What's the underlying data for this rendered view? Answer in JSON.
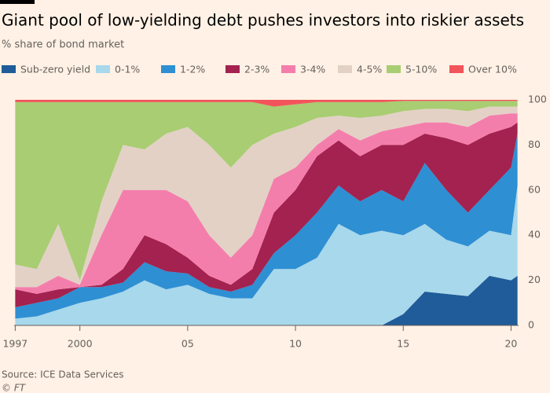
{
  "chart_data": {
    "type": "stacked-area",
    "title": "Giant pool of low-yielding debt pushes investors into riskier assets",
    "subtitle": "% share of bond market",
    "source": "Source: ICE Data Services",
    "credit": "© FT",
    "x": [
      1997,
      1998,
      1999,
      2000,
      2001,
      2002,
      2003,
      2004,
      2005,
      2006,
      2007,
      2008,
      2009,
      2010,
      2011,
      2012,
      2013,
      2014,
      2015,
      2016,
      2017,
      2018,
      2019,
      2020,
      2020.3
    ],
    "xlim": [
      1996.95,
      2020.35
    ],
    "xticks": [
      {
        "value": 1997,
        "label": "1997"
      },
      {
        "value": 2000,
        "label": "2000"
      },
      {
        "value": 2005,
        "label": "05"
      },
      {
        "value": 2010,
        "label": "10"
      },
      {
        "value": 2015,
        "label": "15"
      },
      {
        "value": 2020,
        "label": "20"
      }
    ],
    "ylim": [
      0,
      100
    ],
    "yticks": [
      0,
      20,
      40,
      60,
      80,
      100
    ],
    "grid": false,
    "series": [
      {
        "name": "Sub-zero yield",
        "color": "#1f5c99",
        "values": [
          0,
          0,
          0,
          0,
          0,
          0,
          0,
          0,
          0,
          0,
          0,
          0,
          0,
          0,
          0,
          0,
          0,
          0,
          5,
          15,
          14,
          13,
          22,
          20,
          22
        ]
      },
      {
        "name": "0-1%",
        "color": "#a7d8ec",
        "values": [
          3,
          4,
          7,
          10,
          12,
          15,
          20,
          16,
          18,
          14,
          12,
          12,
          25,
          25,
          30,
          45,
          40,
          42,
          35,
          30,
          24,
          22,
          20,
          20,
          40
        ]
      },
      {
        "name": "1-2%",
        "color": "#2e8fd3",
        "values": [
          5,
          6,
          5,
          7,
          5,
          4,
          8,
          8,
          5,
          3,
          3,
          6,
          7,
          15,
          20,
          17,
          15,
          18,
          15,
          27,
          22,
          15,
          18,
          30,
          23
        ]
      },
      {
        "name": "2-3%",
        "color": "#a3224f",
        "values": [
          8,
          4,
          4,
          0,
          1,
          6,
          12,
          12,
          7,
          5,
          3,
          7,
          18,
          20,
          25,
          20,
          20,
          20,
          25,
          13,
          23,
          30,
          25,
          18,
          5
        ]
      },
      {
        "name": "3-4%",
        "color": "#f47eab",
        "values": [
          1,
          3,
          6,
          1,
          22,
          35,
          20,
          24,
          25,
          18,
          12,
          15,
          15,
          10,
          5,
          5,
          7,
          6,
          8,
          5,
          7,
          8,
          8,
          6,
          4
        ]
      },
      {
        "name": "4-5%",
        "color": "#e3d1c6",
        "values": [
          10,
          8,
          23,
          2,
          15,
          20,
          18,
          25,
          33,
          40,
          40,
          40,
          20,
          18,
          12,
          6,
          10,
          7,
          7,
          6,
          6,
          7,
          4,
          3,
          3
        ]
      },
      {
        "name": "5-10%",
        "color": "#a8cd72",
        "values": [
          72,
          74,
          54,
          79,
          44,
          19,
          21,
          14,
          11,
          19,
          29,
          19,
          12,
          10,
          7,
          6,
          7,
          6,
          4.5,
          3.5,
          3.5,
          4.5,
          2.5,
          2.5,
          2.5
        ]
      },
      {
        "name": "Over 10%",
        "color": "#f2545b",
        "values": [
          1,
          1,
          1,
          1,
          1,
          1,
          1,
          1,
          1,
          1,
          1,
          1,
          3,
          2,
          1,
          1,
          1,
          1,
          0.5,
          0.5,
          0.5,
          0.5,
          0.5,
          0.5,
          0.5
        ]
      }
    ]
  }
}
